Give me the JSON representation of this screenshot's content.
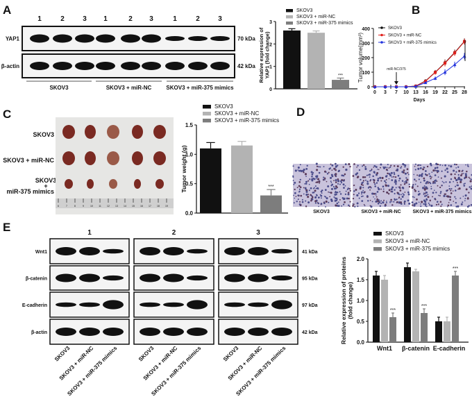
{
  "panel_labels": {
    "a": "A",
    "b": "B",
    "c": "C",
    "d": "D",
    "e": "E"
  },
  "panel_a": {
    "lanes": [
      "1",
      "2",
      "3",
      "1",
      "2",
      "3",
      "1",
      "2",
      "3"
    ],
    "rows": [
      {
        "name": "YAP1",
        "kda": "70 kDa"
      },
      {
        "name": "β-actin",
        "kda": "42 kDa"
      }
    ],
    "groups": [
      "SKOV3",
      "SKOV3 + miR-NC",
      "SKOV3 + miR-375 mimics"
    ]
  },
  "panel_c": {
    "row_labels": [
      "SKOV3",
      "SKOV3 + miR-NC",
      "SKOV3",
      "+",
      "miR-375 mimics"
    ],
    "ruler_ticks": [
      "6",
      "7",
      "8",
      "9",
      "10",
      "11",
      "12",
      "13",
      "14",
      "15",
      "16",
      "17",
      "18",
      "19"
    ]
  },
  "panel_d": {
    "captions": [
      "SKOV3",
      "SKOV3 + miR-NC",
      "SKOV3 + miR-375 mimics"
    ]
  },
  "panel_e": {
    "replicates": [
      "1",
      "2",
      "3"
    ],
    "rows": [
      {
        "name": "Wnt1",
        "kda": "41 kDa"
      },
      {
        "name": "β-catenin",
        "kda": "95 kDa"
      },
      {
        "name": "E-cadherin",
        "kda": "97 kDa"
      },
      {
        "name": "β-actin",
        "kda": "42 kDa"
      }
    ],
    "lane_labels": [
      "SKOV3",
      "SKOV3 + miR-NC",
      "SKOV3 + miR-375 mimics"
    ]
  },
  "colors": {
    "SKOV3": "#111111",
    "SKOV3 + miR-NC": "#b3b3b3",
    "SKOV3 + miR-375 mimics": "#7d7d7d",
    "line_skov3": "#111111",
    "line_nc": "#e0201c",
    "line_mimics": "#2233dd"
  },
  "chart_data": [
    {
      "id": "A",
      "type": "bar",
      "categories": [
        "SKOV3",
        "SKOV3 + miR-NC",
        "SKOV3 + miR-375 mimics"
      ],
      "values": [
        2.6,
        2.5,
        0.4
      ],
      "errors": [
        0.08,
        0.08,
        0.08
      ],
      "significance": [
        "",
        "",
        "***"
      ],
      "ylabel": [
        "Relative expression of",
        "YAP1  (fold change)"
      ],
      "ylim": [
        0,
        3
      ],
      "yticks": [
        "0",
        "1",
        "2",
        "3"
      ],
      "legend": [
        "SKOV3",
        "SKOV3 + miR-NC",
        "SKOV3 + miR-375 mimics"
      ],
      "legend_position": "top"
    },
    {
      "id": "B",
      "type": "line",
      "x": [
        0,
        3,
        7,
        10,
        13,
        16,
        19,
        22,
        25,
        28
      ],
      "xticks": [
        "0",
        "3",
        "7",
        "10",
        "13",
        "16",
        "19",
        "22",
        "25",
        "28"
      ],
      "series": [
        {
          "name": "SKOV3",
          "values": [
            0,
            0,
            0,
            0,
            5,
            40,
            100,
            165,
            235,
            312
          ],
          "errors": [
            0,
            0,
            0,
            0,
            3,
            10,
            15,
            22,
            20,
            20
          ],
          "marker": "circle"
        },
        {
          "name": "SKOV3 + miR-NC",
          "values": [
            0,
            0,
            0,
            0,
            5,
            38,
            98,
            162,
            232,
            310
          ],
          "errors": [
            0,
            0,
            0,
            0,
            3,
            10,
            15,
            22,
            20,
            20
          ],
          "marker": "square"
        },
        {
          "name": "SKOV3 + miR-375 mimics",
          "values": [
            0,
            0,
            0,
            0,
            3,
            28,
            58,
            100,
            152,
            210
          ],
          "errors": [
            0,
            0,
            0,
            0,
            2,
            8,
            12,
            20,
            20,
            22
          ],
          "marker": "triangle"
        }
      ],
      "xlabel": "Days",
      "ylabel": "Tumor volume(mm³)",
      "ylim": [
        0,
        400
      ],
      "yticks": [
        "0",
        "100",
        "200",
        "300",
        "400"
      ],
      "annotation": "miR-NC/375",
      "annotation_day": 7,
      "significance": "***",
      "legend_position": "top-left"
    },
    {
      "id": "C",
      "type": "bar",
      "categories": [
        "SKOV3",
        "SKOV3 + miR-NC",
        "SKOV3 + miR-375 mimics"
      ],
      "values": [
        1.1,
        1.15,
        0.3
      ],
      "errors": [
        0.1,
        0.07,
        0.1
      ],
      "significance": [
        "",
        "",
        "***"
      ],
      "ylabel": "Tumor weight (g)",
      "ylim": [
        0,
        1.5
      ],
      "yticks": [
        "0.0",
        "0.5",
        "1.0",
        "1.5"
      ],
      "legend": [
        "SKOV3",
        "SKOV3 + miR-NC",
        "SKOV3 + miR-375 mimics"
      ],
      "legend_position": "top"
    },
    {
      "id": "E",
      "type": "bar",
      "categories": [
        "Wnt1",
        "β-catenin",
        "E-cadherin"
      ],
      "series": [
        {
          "name": "SKOV3",
          "values": [
            1.6,
            1.8,
            0.5
          ],
          "errors": [
            0.1,
            0.1,
            0.1
          ]
        },
        {
          "name": "SKOV3 + miR-NC",
          "values": [
            1.5,
            1.7,
            0.5
          ],
          "errors": [
            0.1,
            0.05,
            0.1
          ]
        },
        {
          "name": "SKOV3 + miR-375 mimics",
          "values": [
            0.6,
            0.7,
            1.6
          ],
          "errors": [
            0.1,
            0.1,
            0.1
          ]
        }
      ],
      "significance": [
        [
          "",
          "",
          "***"
        ],
        [
          "",
          "",
          "***"
        ],
        [
          "",
          "",
          "***"
        ]
      ],
      "ylabel": [
        "Relative expression of proteins",
        "(fold change)"
      ],
      "ylim": [
        0,
        2
      ],
      "yticks": [
        "0.0",
        "0.5",
        "1.0",
        "1.5",
        "2.0"
      ],
      "legend_position": "top"
    }
  ]
}
